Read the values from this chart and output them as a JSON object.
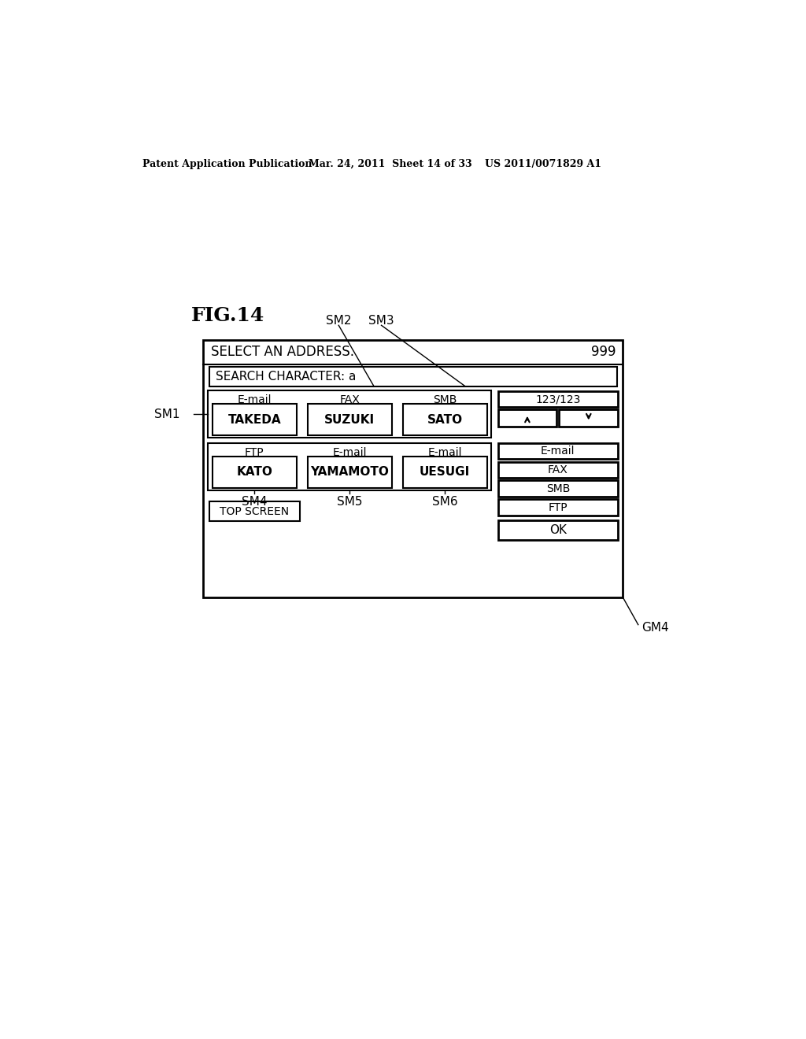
{
  "background_color": "#ffffff",
  "header_text_left": "Patent Application Publication",
  "header_text_mid": "Mar. 24, 2011  Sheet 14 of 33",
  "header_text_right": "US 2011/0071829 A1",
  "fig_label": "FIG.14",
  "screen_title": "SELECT AN ADDRESS.",
  "screen_number": "999",
  "search_bar_text": "SEARCH CHARACTER: a",
  "sm1_label": "SM1",
  "sm2_label": "SM2",
  "sm3_label": "SM3",
  "sm4_label": "SM4",
  "sm5_label": "SM5",
  "sm6_label": "SM6",
  "gm4_label": "GM4",
  "row1": [
    {
      "type": "E-mail",
      "name": "TAKEDA"
    },
    {
      "type": "FAX",
      "name": "SUZUKI"
    },
    {
      "type": "SMB",
      "name": "SATO"
    }
  ],
  "row2": [
    {
      "type": "FTP",
      "name": "KATO"
    },
    {
      "type": "E-mail",
      "name": "YAMAMOTO"
    },
    {
      "type": "E-mail",
      "name": "UESUGI"
    }
  ],
  "page_counter": "123/123",
  "filter_buttons": [
    "E-mail",
    "FAX",
    "SMB",
    "FTP"
  ],
  "top_screen_btn": "TOP SCREEN",
  "ok_btn": "OK"
}
